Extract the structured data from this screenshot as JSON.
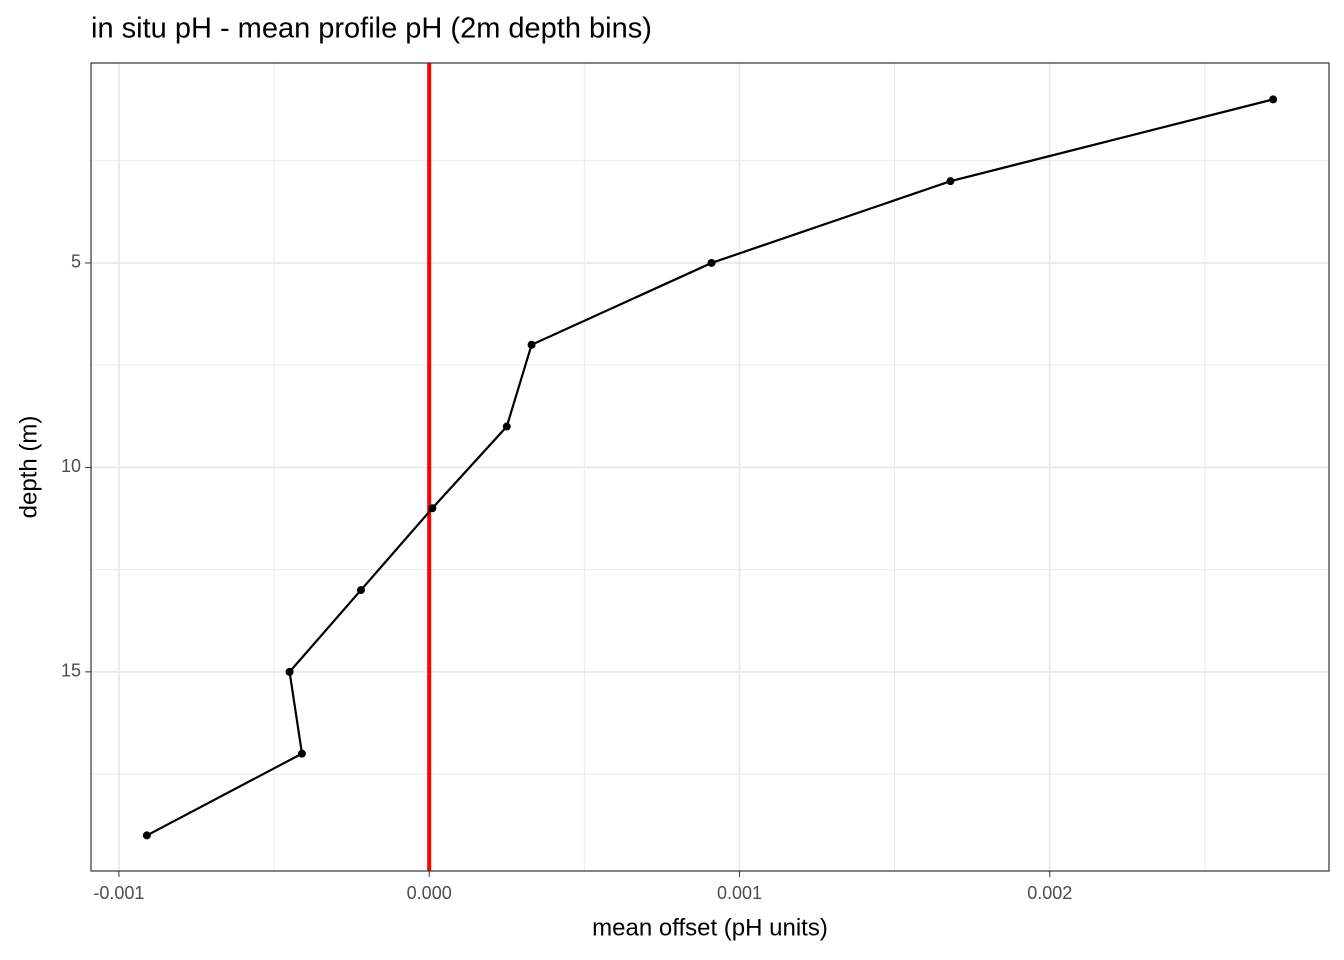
{
  "chart_data": {
    "type": "line",
    "title": "in situ pH - mean profile pH (2m depth bins)",
    "x_label": "mean offset (pH units)",
    "y_label": "depth (m)",
    "x": [
      0.00272,
      0.00168,
      0.00091,
      0.00033,
      0.00025,
      1e-05,
      -0.00022,
      -0.00045,
      -0.00041,
      -0.00091
    ],
    "y": [
      1,
      3,
      5,
      7,
      9,
      11,
      13,
      15,
      17,
      19
    ],
    "color": "#000000",
    "xlim": [
      -0.00109,
      0.0029
    ],
    "ylim": [
      19.87,
      0.11
    ],
    "y_reversed": true,
    "xticks": [
      {
        "value": -0.001,
        "label": "-0.001"
      },
      {
        "value": 0,
        "label": "0.000"
      },
      {
        "value": 0.001,
        "label": "0.001"
      },
      {
        "value": 0.002,
        "label": "0.002"
      }
    ],
    "yticks": [
      5,
      10,
      15
    ],
    "grid": true,
    "vline": {
      "value": 0,
      "color": "#ff0000"
    }
  }
}
